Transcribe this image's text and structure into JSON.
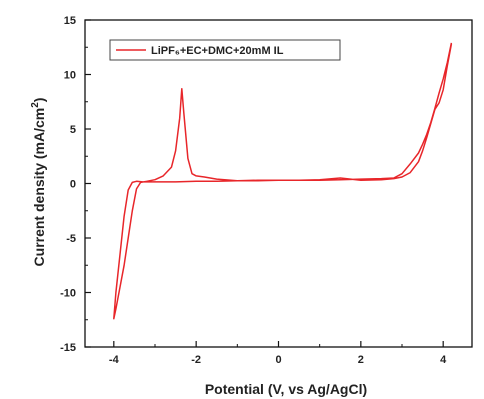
{
  "chart_data": {
    "type": "line",
    "title": "",
    "xlabel": "Potential (V, vs Ag/AgCl)",
    "ylabel": "Current density (mA/cm",
    "ylabel_sup": "2",
    "ylabel_end": ")",
    "xlim": [
      -4.7,
      4.7
    ],
    "ylim": [
      -15,
      15
    ],
    "x_ticks": [
      -4,
      -2,
      0,
      2,
      4
    ],
    "y_ticks": [
      -15,
      -10,
      -5,
      0,
      5,
      10,
      15
    ],
    "x_tick_labels": [
      "-4",
      "-2",
      "0",
      "2",
      "4"
    ],
    "y_tick_labels": [
      "-15",
      "-10",
      "-5",
      "0",
      "5",
      "10",
      "15"
    ],
    "grid": false,
    "legend_position": "top-left",
    "series": [
      {
        "name": "LiPF₆+EC+DMC+20mM IL",
        "color": "#e8262a",
        "x": [
          4.2,
          4.1,
          4.0,
          3.9,
          3.8,
          3.7,
          3.6,
          3.5,
          3.4,
          3.2,
          3.0,
          2.8,
          2.5,
          2.0,
          1.5,
          1.0,
          0.5,
          0.0,
          -0.5,
          -1.0,
          -1.5,
          -1.8,
          -2.0,
          -2.1,
          -2.2,
          -2.3,
          -2.35,
          -2.4,
          -2.5,
          -2.6,
          -2.8,
          -3.0,
          -3.2,
          -3.35,
          -3.45,
          -3.55,
          -3.65,
          -3.75,
          -3.85,
          -3.95,
          -4.0,
          -3.95,
          -3.85,
          -3.75,
          -3.65,
          -3.55,
          -3.45,
          -3.3,
          -3.0,
          -2.5,
          -2.0,
          -1.5,
          -1.0,
          -0.5,
          0.0,
          0.5,
          1.0,
          1.5,
          2.0,
          2.5,
          2.8,
          3.0,
          3.2,
          3.4,
          3.5,
          3.6,
          3.7,
          3.8,
          3.9,
          4.0,
          4.1,
          4.2
        ],
        "y": [
          12.8,
          10.8,
          8.6,
          7.4,
          6.8,
          5.5,
          4.2,
          3.0,
          2.0,
          1.0,
          0.6,
          0.45,
          0.35,
          0.3,
          0.5,
          0.35,
          0.3,
          0.3,
          0.25,
          0.25,
          0.4,
          0.6,
          0.7,
          0.9,
          2.3,
          6.5,
          8.7,
          6.0,
          3.0,
          1.5,
          0.7,
          0.35,
          0.2,
          0.1,
          -0.5,
          -2.5,
          -5.0,
          -7.5,
          -9.5,
          -11.5,
          -12.4,
          -10.0,
          -6.5,
          -3.0,
          -0.6,
          0.1,
          0.2,
          0.15,
          0.15,
          0.15,
          0.2,
          0.2,
          0.25,
          0.3,
          0.3,
          0.3,
          0.3,
          0.35,
          0.4,
          0.45,
          0.5,
          0.9,
          1.8,
          2.8,
          3.6,
          4.5,
          5.6,
          6.9,
          8.3,
          9.6,
          11.1,
          12.9
        ]
      }
    ]
  }
}
